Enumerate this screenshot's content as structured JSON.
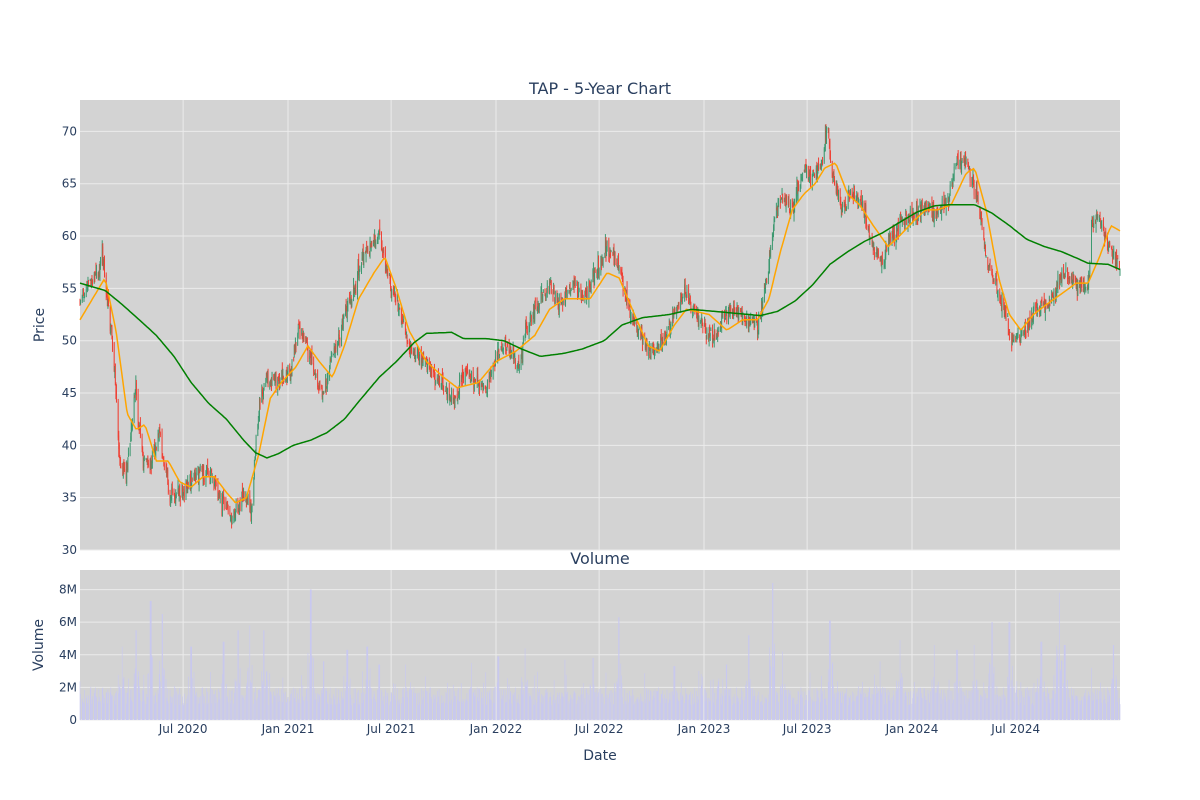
{
  "chart_data": [
    {
      "type": "candlestick",
      "title": "TAP - 5-Year Chart",
      "ylabel": "Price",
      "ylim": [
        30,
        73
      ],
      "yticks": [
        30,
        35,
        40,
        45,
        50,
        55,
        60,
        65,
        70
      ],
      "grid": true,
      "increasing_color": "#3d9970",
      "decreasing_color": "#ef4135",
      "date_range": [
        "2020-01-02",
        "2024-12-31"
      ],
      "close_anchors": [
        [
          "2020-01-02",
          53.5
        ],
        [
          "2020-01-15",
          55.5
        ],
        [
          "2020-02-05",
          56.5
        ],
        [
          "2020-02-10",
          58.5
        ],
        [
          "2020-02-20",
          53.5
        ],
        [
          "2020-03-02",
          48.0
        ],
        [
          "2020-03-12",
          38.0
        ],
        [
          "2020-03-23",
          37.0
        ],
        [
          "2020-04-08",
          45.5
        ],
        [
          "2020-04-20",
          39.0
        ],
        [
          "2020-05-05",
          38.0
        ],
        [
          "2020-05-20",
          41.5
        ],
        [
          "2020-06-08",
          35.0
        ],
        [
          "2020-06-25",
          35.5
        ],
        [
          "2020-07-20",
          37.0
        ],
        [
          "2020-08-15",
          37.5
        ],
        [
          "2020-09-05",
          35.0
        ],
        [
          "2020-09-25",
          33.0
        ],
        [
          "2020-10-15",
          35.0
        ],
        [
          "2020-10-29",
          34.0
        ],
        [
          "2020-11-10",
          43.0
        ],
        [
          "2020-11-25",
          46.5
        ],
        [
          "2020-12-15",
          46.0
        ],
        [
          "2021-01-05",
          47.0
        ],
        [
          "2021-01-20",
          51.5
        ],
        [
          "2021-02-05",
          49.0
        ],
        [
          "2021-02-22",
          45.5
        ],
        [
          "2021-03-05",
          45.0
        ],
        [
          "2021-03-22",
          49.5
        ],
        [
          "2021-04-10",
          52.0
        ],
        [
          "2021-04-28",
          55.0
        ],
        [
          "2021-05-15",
          58.5
        ],
        [
          "2021-06-10",
          60.0
        ],
        [
          "2021-06-25",
          56.0
        ],
        [
          "2021-07-15",
          53.0
        ],
        [
          "2021-08-05",
          49.0
        ],
        [
          "2021-08-25",
          48.5
        ],
        [
          "2021-09-15",
          46.5
        ],
        [
          "2021-10-05",
          45.5
        ],
        [
          "2021-10-20",
          44.0
        ],
        [
          "2021-11-05",
          47.0
        ],
        [
          "2021-11-25",
          46.0
        ],
        [
          "2021-12-15",
          45.5
        ],
        [
          "2022-01-05",
          49.0
        ],
        [
          "2022-01-20",
          49.5
        ],
        [
          "2022-02-10",
          48.0
        ],
        [
          "2022-03-01",
          52.0
        ],
        [
          "2022-03-20",
          54.0
        ],
        [
          "2022-04-05",
          55.5
        ],
        [
          "2022-04-25",
          53.5
        ],
        [
          "2022-05-15",
          55.5
        ],
        [
          "2022-06-05",
          54.0
        ],
        [
          "2022-06-25",
          56.5
        ],
        [
          "2022-07-15",
          59.0
        ],
        [
          "2022-08-05",
          57.0
        ],
        [
          "2022-08-25",
          52.5
        ],
        [
          "2022-09-15",
          50.5
        ],
        [
          "2022-10-01",
          48.5
        ],
        [
          "2022-10-20",
          50.0
        ],
        [
          "2022-11-10",
          52.5
        ],
        [
          "2022-11-30",
          55.0
        ],
        [
          "2022-12-20",
          52.0
        ],
        [
          "2023-01-05",
          51.0
        ],
        [
          "2023-01-20",
          50.0
        ],
        [
          "2023-02-05",
          52.5
        ],
        [
          "2023-02-25",
          53.0
        ],
        [
          "2023-03-15",
          52.0
        ],
        [
          "2023-04-05",
          51.5
        ],
        [
          "2023-04-20",
          55.0
        ],
        [
          "2023-05-05",
          62.0
        ],
        [
          "2023-05-20",
          64.0
        ],
        [
          "2023-06-05",
          62.5
        ],
        [
          "2023-06-25",
          66.5
        ],
        [
          "2023-07-10",
          65.5
        ],
        [
          "2023-07-25",
          67.0
        ],
        [
          "2023-08-05",
          70.5
        ],
        [
          "2023-08-15",
          66.0
        ],
        [
          "2023-08-30",
          62.5
        ],
        [
          "2023-09-20",
          64.0
        ],
        [
          "2023-10-10",
          62.5
        ],
        [
          "2023-10-25",
          58.5
        ],
        [
          "2023-11-10",
          57.5
        ],
        [
          "2023-11-25",
          60.0
        ],
        [
          "2023-12-15",
          61.5
        ],
        [
          "2024-01-05",
          62.0
        ],
        [
          "2024-01-25",
          63.0
        ],
        [
          "2024-02-15",
          62.0
        ],
        [
          "2024-03-05",
          63.5
        ],
        [
          "2024-03-20",
          67.0
        ],
        [
          "2024-04-05",
          67.5
        ],
        [
          "2024-04-25",
          63.5
        ],
        [
          "2024-05-10",
          58.0
        ],
        [
          "2024-05-25",
          56.0
        ],
        [
          "2024-06-10",
          52.5
        ],
        [
          "2024-06-25",
          50.0
        ],
        [
          "2024-07-15",
          51.0
        ],
        [
          "2024-08-05",
          53.0
        ],
        [
          "2024-08-25",
          53.5
        ],
        [
          "2024-09-10",
          55.0
        ],
        [
          "2024-09-25",
          56.5
        ],
        [
          "2024-10-15",
          55.5
        ],
        [
          "2024-11-05",
          55.0
        ],
        [
          "2024-11-12",
          61.5
        ],
        [
          "2024-11-25",
          62.0
        ],
        [
          "2024-12-10",
          59.0
        ],
        [
          "2024-12-31",
          57.0
        ]
      ],
      "ma_short_color": "#ffa500",
      "ma_short_anchors": [
        [
          "2020-01-02",
          52.0
        ],
        [
          "2020-02-15",
          56.0
        ],
        [
          "2020-03-05",
          51.0
        ],
        [
          "2020-03-25",
          43.0
        ],
        [
          "2020-04-10",
          41.5
        ],
        [
          "2020-04-25",
          42.0
        ],
        [
          "2020-05-15",
          38.5
        ],
        [
          "2020-06-05",
          38.5
        ],
        [
          "2020-06-25",
          36.5
        ],
        [
          "2020-07-15",
          36.0
        ],
        [
          "2020-08-05",
          37.0
        ],
        [
          "2020-08-25",
          37.0
        ],
        [
          "2020-09-15",
          35.5
        ],
        [
          "2020-10-01",
          34.5
        ],
        [
          "2020-10-20",
          35.0
        ],
        [
          "2020-11-10",
          39.0
        ],
        [
          "2020-12-01",
          44.5
        ],
        [
          "2020-12-20",
          46.0
        ],
        [
          "2021-01-15",
          47.5
        ],
        [
          "2021-02-05",
          49.5
        ],
        [
          "2021-02-25",
          48.0
        ],
        [
          "2021-03-20",
          46.5
        ],
        [
          "2021-04-10",
          49.5
        ],
        [
          "2021-05-05",
          54.0
        ],
        [
          "2021-06-01",
          56.5
        ],
        [
          "2021-06-20",
          58.0
        ],
        [
          "2021-07-10",
          55.0
        ],
        [
          "2021-08-01",
          51.0
        ],
        [
          "2021-09-01",
          48.0
        ],
        [
          "2021-10-01",
          46.5
        ],
        [
          "2021-10-25",
          45.5
        ],
        [
          "2021-12-01",
          46.0
        ],
        [
          "2022-01-01",
          48.0
        ],
        [
          "2022-02-05",
          49.0
        ],
        [
          "2022-03-10",
          50.5
        ],
        [
          "2022-04-05",
          53.0
        ],
        [
          "2022-05-01",
          54.0
        ],
        [
          "2022-05-25",
          54.0
        ],
        [
          "2022-06-15",
          54.0
        ],
        [
          "2022-07-15",
          56.5
        ],
        [
          "2022-08-05",
          56.0
        ],
        [
          "2022-09-01",
          52.5
        ],
        [
          "2022-09-25",
          49.5
        ],
        [
          "2022-10-15",
          49.0
        ],
        [
          "2022-11-10",
          51.5
        ],
        [
          "2022-12-01",
          53.0
        ],
        [
          "2023-01-10",
          52.5
        ],
        [
          "2023-02-10",
          51.0
        ],
        [
          "2023-03-10",
          52.0
        ],
        [
          "2023-04-05",
          52.0
        ],
        [
          "2023-04-25",
          54.0
        ],
        [
          "2023-05-15",
          58.5
        ],
        [
          "2023-06-05",
          62.5
        ],
        [
          "2023-06-25",
          64.0
        ],
        [
          "2023-07-15",
          65.0
        ],
        [
          "2023-08-01",
          66.5
        ],
        [
          "2023-08-20",
          67.0
        ],
        [
          "2023-09-10",
          64.0
        ],
        [
          "2023-10-01",
          63.0
        ],
        [
          "2023-10-25",
          61.0
        ],
        [
          "2023-11-20",
          59.0
        ],
        [
          "2023-12-10",
          60.0
        ],
        [
          "2024-01-05",
          61.5
        ],
        [
          "2024-01-25",
          62.5
        ],
        [
          "2024-02-15",
          62.5
        ],
        [
          "2024-03-10",
          63.0
        ],
        [
          "2024-04-05",
          66.0
        ],
        [
          "2024-04-20",
          66.5
        ],
        [
          "2024-05-10",
          62.5
        ],
        [
          "2024-06-01",
          56.0
        ],
        [
          "2024-06-20",
          52.5
        ],
        [
          "2024-07-10",
          51.0
        ],
        [
          "2024-08-01",
          52.5
        ],
        [
          "2024-08-25",
          53.5
        ],
        [
          "2024-09-20",
          54.5
        ],
        [
          "2024-10-15",
          55.5
        ],
        [
          "2024-11-05",
          55.5
        ],
        [
          "2024-11-25",
          58.0
        ],
        [
          "2024-12-15",
          61.0
        ],
        [
          "2024-12-31",
          60.5
        ]
      ],
      "ma_long_color": "#008000",
      "ma_long_anchors": [
        [
          "2020-01-02",
          55.5
        ],
        [
          "2020-02-15",
          54.8
        ],
        [
          "2020-03-15",
          53.5
        ],
        [
          "2020-04-15",
          52.0
        ],
        [
          "2020-05-15",
          50.5
        ],
        [
          "2020-06-15",
          48.5
        ],
        [
          "2020-07-15",
          46.0
        ],
        [
          "2020-08-15",
          44.0
        ],
        [
          "2020-09-15",
          42.5
        ],
        [
          "2020-10-15",
          40.5
        ],
        [
          "2020-11-05",
          39.3
        ],
        [
          "2020-11-25",
          38.8
        ],
        [
          "2020-12-15",
          39.2
        ],
        [
          "2021-01-10",
          40.0
        ],
        [
          "2021-02-10",
          40.5
        ],
        [
          "2021-03-10",
          41.2
        ],
        [
          "2021-04-10",
          42.5
        ],
        [
          "2021-05-10",
          44.5
        ],
        [
          "2021-06-10",
          46.5
        ],
        [
          "2021-07-10",
          48.0
        ],
        [
          "2021-08-10",
          49.8
        ],
        [
          "2021-09-01",
          50.7
        ],
        [
          "2021-10-15",
          50.8
        ],
        [
          "2021-11-05",
          50.2
        ],
        [
          "2021-12-15",
          50.2
        ],
        [
          "2022-01-15",
          50.0
        ],
        [
          "2022-02-15",
          49.2
        ],
        [
          "2022-03-20",
          48.5
        ],
        [
          "2022-05-01",
          48.8
        ],
        [
          "2022-06-01",
          49.2
        ],
        [
          "2022-07-10",
          50.0
        ],
        [
          "2022-08-10",
          51.5
        ],
        [
          "2022-09-15",
          52.2
        ],
        [
          "2022-11-01",
          52.5
        ],
        [
          "2022-12-10",
          53.0
        ],
        [
          "2023-01-20",
          52.8
        ],
        [
          "2023-03-01",
          52.6
        ],
        [
          "2023-04-10",
          52.4
        ],
        [
          "2023-05-10",
          52.8
        ],
        [
          "2023-06-10",
          53.8
        ],
        [
          "2023-07-10",
          55.3
        ],
        [
          "2023-08-10",
          57.3
        ],
        [
          "2023-09-10",
          58.5
        ],
        [
          "2023-10-10",
          59.5
        ],
        [
          "2023-11-10",
          60.3
        ],
        [
          "2023-12-10",
          61.3
        ],
        [
          "2024-01-10",
          62.3
        ],
        [
          "2024-02-10",
          62.9
        ],
        [
          "2024-03-10",
          63.0
        ],
        [
          "2024-04-20",
          63.0
        ],
        [
          "2024-05-20",
          62.2
        ],
        [
          "2024-06-20",
          61.0
        ],
        [
          "2024-07-20",
          59.7
        ],
        [
          "2024-08-20",
          59.0
        ],
        [
          "2024-09-20",
          58.5
        ],
        [
          "2024-10-20",
          57.8
        ],
        [
          "2024-11-05",
          57.4
        ],
        [
          "2024-12-10",
          57.3
        ],
        [
          "2024-12-31",
          56.8
        ]
      ]
    },
    {
      "type": "bar",
      "title": "Volume",
      "ylabel": "Volume",
      "xlabel": "Date",
      "ylim": [
        0,
        9200000
      ],
      "yticks": [
        [
          0,
          "0"
        ],
        [
          2000000,
          "2M"
        ],
        [
          4000000,
          "4M"
        ],
        [
          6000000,
          "6M"
        ],
        [
          8000000,
          "8M"
        ]
      ],
      "bar_color": "#c8c8f0",
      "grid": true,
      "xticks": [
        [
          "2020-07-01",
          "Jul 2020"
        ],
        [
          "2021-01-01",
          "Jan 2021"
        ],
        [
          "2021-07-01",
          "Jul 2021"
        ],
        [
          "2022-01-01",
          "Jan 2022"
        ],
        [
          "2022-07-01",
          "Jul 2022"
        ],
        [
          "2023-01-01",
          "Jan 2023"
        ],
        [
          "2023-07-01",
          "Jul 2023"
        ],
        [
          "2024-01-01",
          "Jan 2024"
        ],
        [
          "2024-07-01",
          "Jul 2024"
        ]
      ],
      "volume_peaks": [
        [
          "2020-03-15",
          4500000
        ],
        [
          "2020-04-10",
          5500000
        ],
        [
          "2020-05-05",
          7300000
        ],
        [
          "2020-05-25",
          6500000
        ],
        [
          "2020-07-15",
          4500000
        ],
        [
          "2020-09-10",
          4800000
        ],
        [
          "2020-10-05",
          5500000
        ],
        [
          "2020-10-25",
          5800000
        ],
        [
          "2020-11-20",
          5500000
        ],
        [
          "2021-02-10",
          8000000
        ],
        [
          "2021-03-05",
          3600000
        ],
        [
          "2021-04-15",
          4300000
        ],
        [
          "2021-05-20",
          4500000
        ],
        [
          "2021-06-10",
          3400000
        ],
        [
          "2021-07-25",
          3400000
        ],
        [
          "2021-11-20",
          3500000
        ],
        [
          "2022-01-05",
          3900000
        ],
        [
          "2022-02-20",
          4400000
        ],
        [
          "2022-05-01",
          3700000
        ],
        [
          "2022-06-20",
          3800000
        ],
        [
          "2022-08-05",
          6300000
        ],
        [
          "2022-11-10",
          3300000
        ],
        [
          "2023-02-10",
          3400000
        ],
        [
          "2023-03-20",
          5200000
        ],
        [
          "2023-05-01",
          8400000
        ],
        [
          "2023-05-20",
          4200000
        ],
        [
          "2023-08-10",
          6100000
        ],
        [
          "2023-11-05",
          3600000
        ],
        [
          "2023-12-10",
          4900000
        ],
        [
          "2024-02-10",
          4600000
        ],
        [
          "2024-03-20",
          4300000
        ],
        [
          "2024-04-20",
          4600000
        ],
        [
          "2024-05-20",
          6000000
        ],
        [
          "2024-06-20",
          6000000
        ],
        [
          "2024-08-15",
          4800000
        ],
        [
          "2024-09-15",
          7800000
        ],
        [
          "2024-09-25",
          4600000
        ],
        [
          "2024-11-10",
          3200000
        ],
        [
          "2024-12-20",
          4600000
        ]
      ]
    }
  ]
}
